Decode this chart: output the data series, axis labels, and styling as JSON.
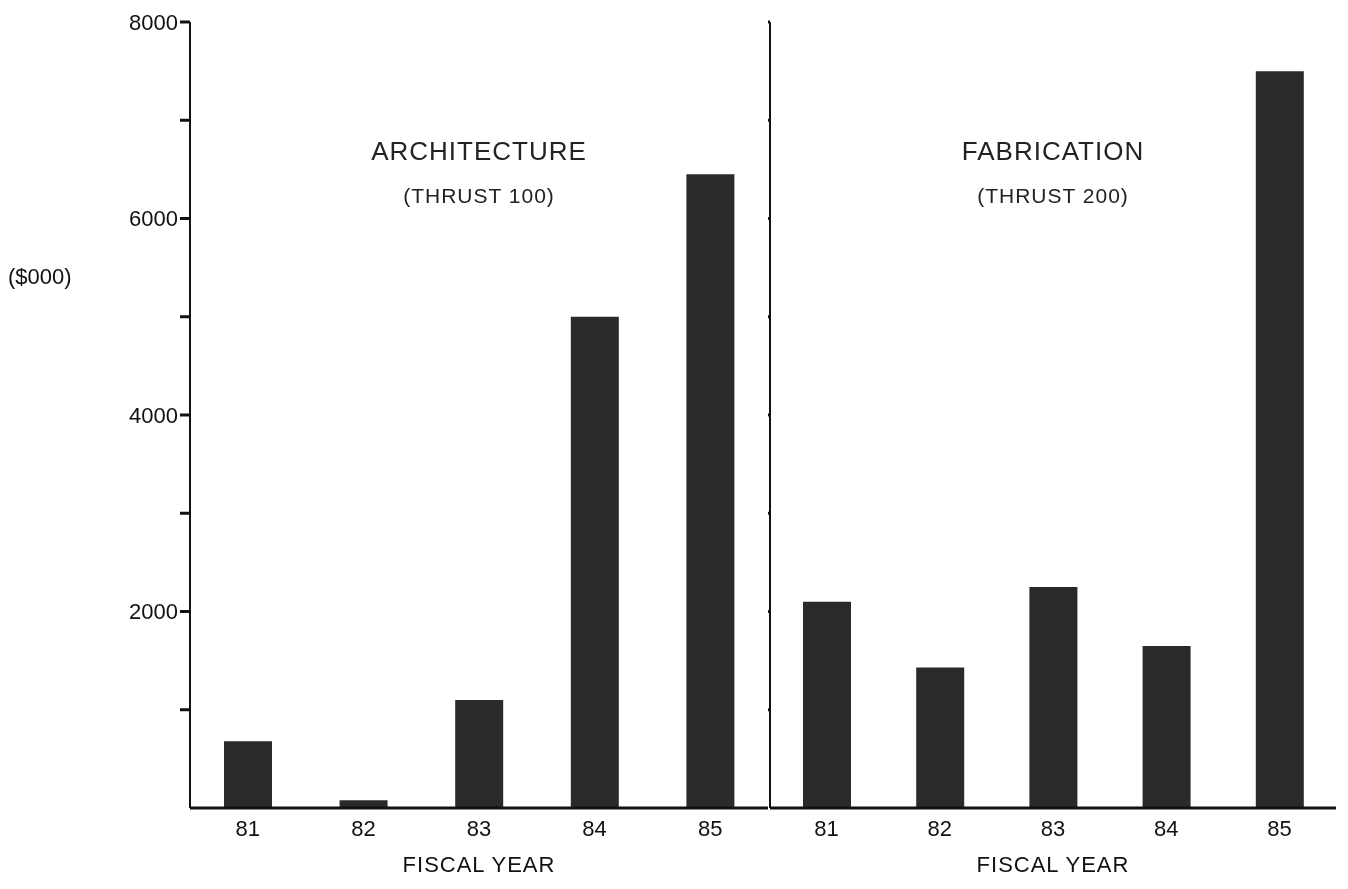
{
  "chart_data": [
    {
      "type": "bar",
      "title": "ARCHITECTURE",
      "subtitle": "(THRUST 100)",
      "xlabel": "FISCAL YEAR",
      "ylabel": "($000)",
      "categories": [
        "81",
        "82",
        "83",
        "84",
        "85"
      ],
      "values": [
        680,
        80,
        1100,
        5000,
        6450
      ],
      "color": "#2a2a2a",
      "ylim": [
        0,
        8000
      ],
      "yticks": [
        {
          "value": 1000,
          "label": null
        },
        2000,
        {
          "value": 3000,
          "label": null
        },
        4000,
        {
          "value": 5000,
          "label": null
        },
        6000,
        {
          "value": 7000,
          "label": null
        },
        8000
      ]
    },
    {
      "type": "bar",
      "title": "FABRICATION",
      "subtitle": "(THRUST 200)",
      "xlabel": "FISCAL YEAR",
      "categories": [
        "81",
        "82",
        "83",
        "84",
        "85"
      ],
      "values": [
        2100,
        1430,
        2250,
        1650,
        7500
      ],
      "color": "#2a2a2a",
      "ylim": [
        0,
        8000
      ],
      "yticks": [
        {
          "value": 1000,
          "label": null
        },
        {
          "value": 2000,
          "label": null
        },
        {
          "value": 3000,
          "label": null
        },
        {
          "value": 4000,
          "label": null
        },
        {
          "value": 5000,
          "label": null
        },
        {
          "value": 6000,
          "label": null
        },
        {
          "value": 7000,
          "label": null
        },
        {
          "value": 8000,
          "label": null
        }
      ],
      "tick_labels": "x"
    }
  ]
}
